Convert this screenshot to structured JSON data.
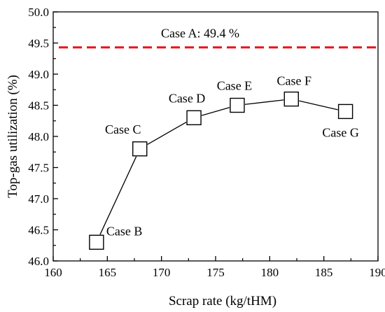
{
  "chart_data": {
    "type": "line",
    "xlabel": "Scrap rate (kg/tHM)",
    "ylabel": "Top-gas utilization (%)",
    "xlim": [
      160,
      190
    ],
    "ylim": [
      46.0,
      50.0
    ],
    "x_ticks": [
      160,
      165,
      170,
      175,
      180,
      185,
      190
    ],
    "y_ticks": [
      46.0,
      46.5,
      47.0,
      47.5,
      48.0,
      48.5,
      49.0,
      49.5,
      50.0
    ],
    "x_tick_labels": [
      "160",
      "165",
      "170",
      "175",
      "180",
      "185",
      "190"
    ],
    "y_tick_labels": [
      "46.0",
      "46.5",
      "47.0",
      "47.5",
      "48.0",
      "48.5",
      "49.0",
      "49.5",
      "50.0"
    ],
    "grid": false,
    "series": [
      {
        "marker": "open-square",
        "color": "#000000",
        "points": [
          {
            "x": 164,
            "y": 46.3,
            "label": "Case B"
          },
          {
            "x": 168,
            "y": 47.8,
            "label": "Case C"
          },
          {
            "x": 173,
            "y": 48.3,
            "label": "Case D"
          },
          {
            "x": 177,
            "y": 48.5,
            "label": "Case E"
          },
          {
            "x": 182,
            "y": 48.6,
            "label": "Case F"
          },
          {
            "x": 187,
            "y": 48.4,
            "label": "Case G"
          }
        ]
      }
    ],
    "reference_line": {
      "y": 49.43,
      "label": "Case A: 49.4 %",
      "color": "#e8141c",
      "style": "dashed"
    }
  }
}
